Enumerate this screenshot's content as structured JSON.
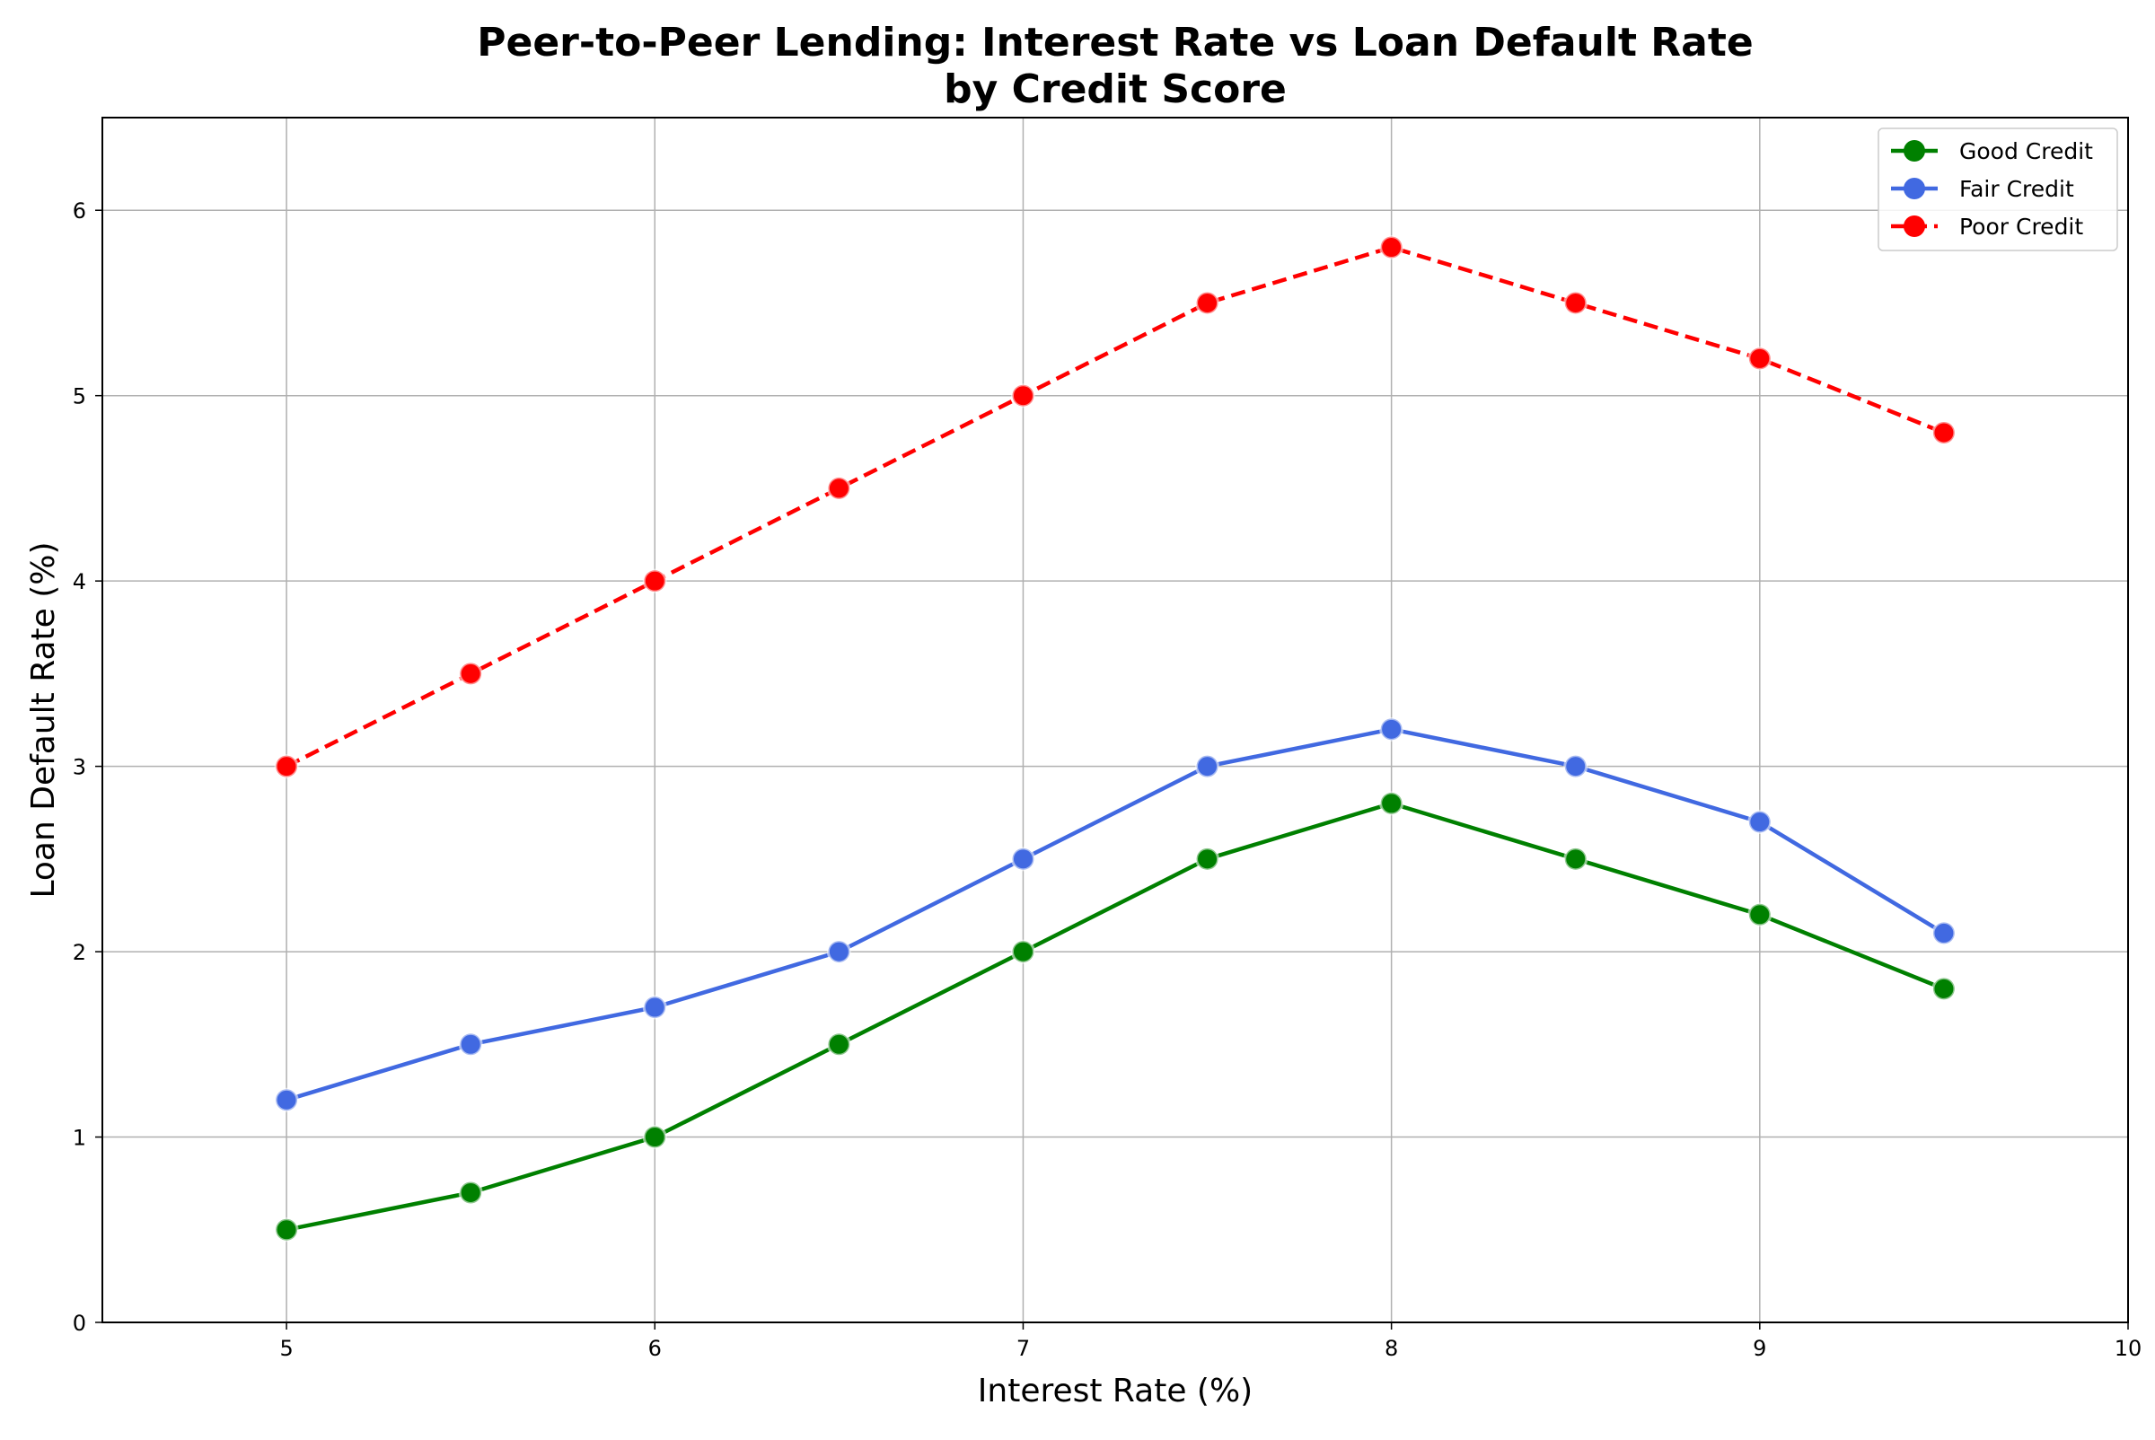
{
  "chart_data": {
    "type": "line",
    "title_lines": [
      "Peer-to-Peer Lending: Interest Rate vs Loan Default Rate",
      "by Credit Score"
    ],
    "xlabel": "Interest Rate (%)",
    "ylabel": "Loan Default Rate (%)",
    "xlim": [
      4.5,
      10
    ],
    "ylim": [
      0,
      6.5
    ],
    "xticks": [
      "5",
      "6",
      "7",
      "8",
      "9",
      "10"
    ],
    "yticks": [
      "0",
      "1",
      "2",
      "3",
      "4",
      "5",
      "6"
    ],
    "grid": true,
    "legend_position": "top-right",
    "x": [
      5,
      5.5,
      6,
      6.5,
      7,
      7.5,
      8,
      8.5,
      9,
      9.5
    ],
    "series": [
      {
        "name": "Good Credit",
        "values": [
          0.5,
          0.7,
          1.0,
          1.5,
          2.0,
          2.5,
          2.8,
          2.5,
          2.2,
          1.8
        ],
        "color": "#008000",
        "dash": "solid"
      },
      {
        "name": "Fair Credit",
        "values": [
          1.2,
          1.5,
          1.7,
          2.0,
          2.5,
          3.0,
          3.2,
          3.0,
          2.7,
          2.1
        ],
        "color": "#4169e1",
        "dash": "solid"
      },
      {
        "name": "Poor Credit",
        "values": [
          3.0,
          3.5,
          4.0,
          4.5,
          5.0,
          5.5,
          5.8,
          5.5,
          5.2,
          4.8
        ],
        "color": "#ff0000",
        "dash": "dashed"
      }
    ]
  }
}
